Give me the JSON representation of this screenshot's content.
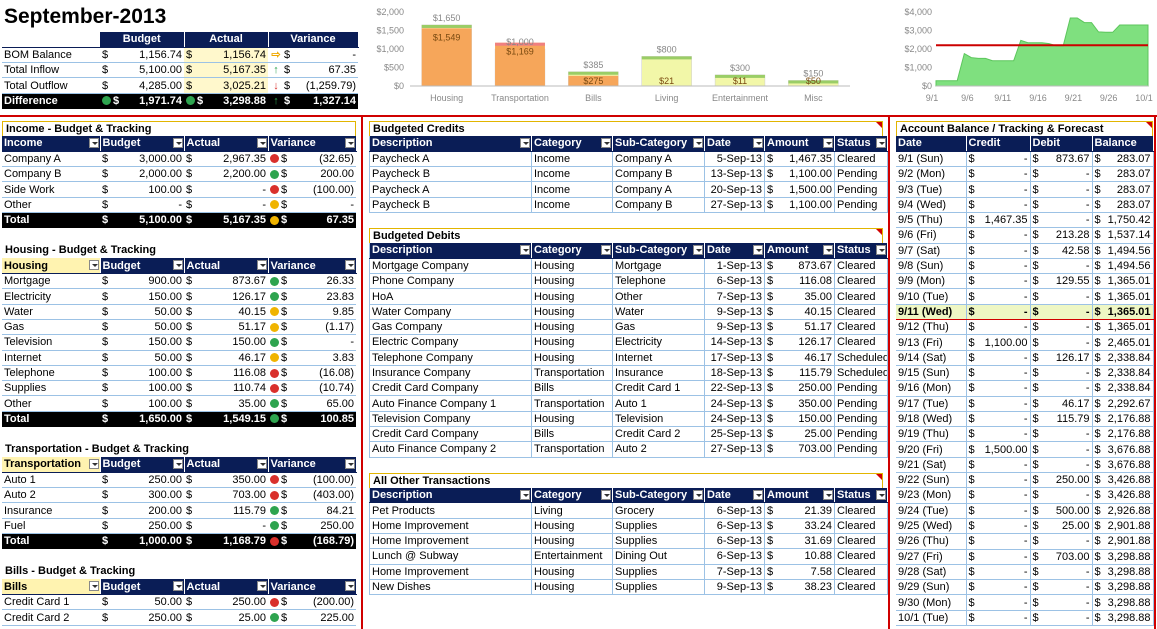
{
  "title": "September-2013",
  "summary": {
    "headers": [
      "",
      "Budget",
      "Actual",
      "Variance"
    ],
    "rows": [
      {
        "label": "BOM Balance",
        "budget": "1,156.74",
        "actual": "1,156.74",
        "variance": "-",
        "icon": "rt"
      },
      {
        "label": "Total Inflow",
        "budget": "5,100.00",
        "actual": "5,167.35",
        "variance": "67.35",
        "icon": "up"
      },
      {
        "label": "Total Outflow",
        "budget": "4,285.00",
        "actual": "3,025.21",
        "variance": "(1,259.79)",
        "icon": "dn"
      }
    ],
    "difference": {
      "label": "Difference",
      "budget": "1,971.74",
      "actual": "3,298.88",
      "variance": "1,327.14"
    }
  },
  "bar_chart": {
    "type": "bar",
    "categories": [
      "Housing",
      "Transportation",
      "Bills",
      "Living",
      "Entertainment",
      "Misc"
    ],
    "series": [
      {
        "values": [
          1650,
          1000,
          385,
          800,
          300,
          150
        ]
      },
      {
        "values": [
          1549,
          1169,
          275,
          21,
          11,
          50
        ]
      }
    ],
    "budget_labels": [
      "$1,650",
      "$1,000",
      "$385",
      "$800",
      "$300",
      "$150"
    ],
    "actual_labels": [
      "$1,549",
      "$1,169",
      "$275",
      "$21",
      "$11",
      "$50"
    ],
    "yticks": [
      "$0",
      "$500",
      "$1,000",
      "$1,500",
      "$2,000"
    ],
    "ylim": [
      0,
      2000
    ]
  },
  "line_chart": {
    "type": "area",
    "xticks": [
      "9/1",
      "9/6",
      "9/11",
      "9/16",
      "9/21",
      "9/26",
      "10/1"
    ],
    "yticks": [
      "$0",
      "$1,000",
      "$2,000",
      "$3,000",
      "$4,000"
    ],
    "ylim": [
      0,
      4000
    ],
    "reference": 2200,
    "x": [
      1,
      2,
      3,
      4,
      5,
      6,
      7,
      8,
      9,
      10,
      11,
      12,
      13,
      14,
      15,
      16,
      17,
      18,
      19,
      20,
      21,
      22,
      23,
      24,
      25,
      26,
      27,
      28,
      29,
      30,
      31
    ],
    "values": [
      283.07,
      283.07,
      283.07,
      283.07,
      1750.42,
      1537.14,
      1494.56,
      1494.56,
      1365.01,
      1365.01,
      1365.01,
      1365.01,
      2465.01,
      2338.84,
      2338.84,
      2338.84,
      2292.67,
      2176.88,
      2176.88,
      3676.88,
      3676.88,
      3426.88,
      3426.88,
      2926.88,
      2901.88,
      2901.88,
      3298.88,
      3298.88,
      3298.88,
      3298.88,
      3298.88
    ]
  },
  "income": {
    "title": "Income - Budget & Tracking",
    "headers": [
      "Income",
      "Budget",
      "Actual",
      "Variance"
    ],
    "rows": [
      [
        "Company A",
        "3,000.00",
        "2,967.35",
        "(32.65)",
        "r"
      ],
      [
        "Company B",
        "2,000.00",
        "2,200.00",
        "200.00",
        "g"
      ],
      [
        "Side Work",
        "100.00",
        "-",
        "(100.00)",
        "r"
      ],
      [
        "Other",
        "-",
        "-",
        "-",
        "y"
      ]
    ],
    "total": [
      "Total",
      "5,100.00",
      "5,167.35",
      "67.35",
      "y"
    ]
  },
  "housing": {
    "title": "Housing - Budget & Tracking",
    "headers": [
      "Housing",
      "Budget",
      "Actual",
      "Variance"
    ],
    "rows": [
      [
        "Mortgage",
        "900.00",
        "873.67",
        "26.33",
        "g"
      ],
      [
        "Electricity",
        "150.00",
        "126.17",
        "23.83",
        "g"
      ],
      [
        "Water",
        "50.00",
        "40.15",
        "9.85",
        "y"
      ],
      [
        "Gas",
        "50.00",
        "51.17",
        "(1.17)",
        "y"
      ],
      [
        "Television",
        "150.00",
        "150.00",
        "-",
        "g"
      ],
      [
        "Internet",
        "50.00",
        "46.17",
        "3.83",
        "y"
      ],
      [
        "Telephone",
        "100.00",
        "116.08",
        "(16.08)",
        "r"
      ],
      [
        "Supplies",
        "100.00",
        "110.74",
        "(10.74)",
        "r"
      ],
      [
        "Other",
        "100.00",
        "35.00",
        "65.00",
        "g"
      ]
    ],
    "total": [
      "Total",
      "1,650.00",
      "1,549.15",
      "100.85",
      "g"
    ]
  },
  "transportation": {
    "title": "Transportation - Budget & Tracking",
    "headers": [
      "Transportation",
      "Budget",
      "Actual",
      "Variance"
    ],
    "rows": [
      [
        "Auto 1",
        "250.00",
        "350.00",
        "(100.00)",
        "r"
      ],
      [
        "Auto 2",
        "300.00",
        "703.00",
        "(403.00)",
        "r"
      ],
      [
        "Insurance",
        "200.00",
        "115.79",
        "84.21",
        "g"
      ],
      [
        "Fuel",
        "250.00",
        "-",
        "250.00",
        "g"
      ]
    ],
    "total": [
      "Total",
      "1,000.00",
      "1,168.79",
      "(168.79)",
      "r"
    ]
  },
  "bills": {
    "title": "Bills - Budget & Tracking",
    "headers": [
      "Bills",
      "Budget",
      "Actual",
      "Variance"
    ],
    "rows": [
      [
        "Credit Card 1",
        "50.00",
        "250.00",
        "(200.00)",
        "r"
      ],
      [
        "Credit Card 2",
        "250.00",
        "25.00",
        "225.00",
        "g"
      ]
    ]
  },
  "credits": {
    "title": "Budgeted Credits",
    "headers": [
      "Description",
      "Category",
      "Sub-Category",
      "Date",
      "Amount",
      "Status"
    ],
    "rows": [
      [
        "Paycheck A",
        "Income",
        "Company A",
        "5-Sep-13",
        "1,467.35",
        "Cleared"
      ],
      [
        "Paycheck B",
        "Income",
        "Company B",
        "13-Sep-13",
        "1,100.00",
        "Pending"
      ],
      [
        "Paycheck A",
        "Income",
        "Company A",
        "20-Sep-13",
        "1,500.00",
        "Pending"
      ],
      [
        "Paycheck B",
        "Income",
        "Company B",
        "27-Sep-13",
        "1,100.00",
        "Pending"
      ]
    ]
  },
  "debits": {
    "title": "Budgeted Debits",
    "headers": [
      "Description",
      "Category",
      "Sub-Category",
      "Date",
      "Amount",
      "Status"
    ],
    "rows": [
      [
        "Mortgage Company",
        "Housing",
        "Mortgage",
        "1-Sep-13",
        "873.67",
        "Cleared"
      ],
      [
        "Phone Company",
        "Housing",
        "Telephone",
        "6-Sep-13",
        "116.08",
        "Cleared"
      ],
      [
        "HoA",
        "Housing",
        "Other",
        "7-Sep-13",
        "35.00",
        "Cleared"
      ],
      [
        "Water Company",
        "Housing",
        "Water",
        "9-Sep-13",
        "40.15",
        "Cleared"
      ],
      [
        "Gas Company",
        "Housing",
        "Gas",
        "9-Sep-13",
        "51.17",
        "Cleared"
      ],
      [
        "Electric Company",
        "Housing",
        "Electricity",
        "14-Sep-13",
        "126.17",
        "Cleared"
      ],
      [
        "Telephone Company",
        "Housing",
        "Internet",
        "17-Sep-13",
        "46.17",
        "Scheduled"
      ],
      [
        "Insurance Company",
        "Transportation",
        "Insurance",
        "18-Sep-13",
        "115.79",
        "Scheduled"
      ],
      [
        "Credit Card Company",
        "Bills",
        "Credit Card 1",
        "22-Sep-13",
        "250.00",
        "Pending"
      ],
      [
        "Auto Finance Company 1",
        "Transportation",
        "Auto 1",
        "24-Sep-13",
        "350.00",
        "Pending"
      ],
      [
        "Television Company",
        "Housing",
        "Television",
        "24-Sep-13",
        "150.00",
        "Pending"
      ],
      [
        "Credit Card Company",
        "Bills",
        "Credit Card 2",
        "25-Sep-13",
        "25.00",
        "Pending"
      ],
      [
        "Auto Finance Company 2",
        "Transportation",
        "Auto 2",
        "27-Sep-13",
        "703.00",
        "Pending"
      ]
    ]
  },
  "other": {
    "title": "All Other Transactions",
    "headers": [
      "Description",
      "Category",
      "Sub-Category",
      "Date",
      "Amount",
      "Status"
    ],
    "rows": [
      [
        "Pet Products",
        "Living",
        "Grocery",
        "6-Sep-13",
        "21.39",
        "Cleared"
      ],
      [
        "Home Improvement",
        "Housing",
        "Supplies",
        "6-Sep-13",
        "33.24",
        "Cleared"
      ],
      [
        "Home Improvement",
        "Housing",
        "Supplies",
        "6-Sep-13",
        "31.69",
        "Cleared"
      ],
      [
        "Lunch @ Subway",
        "Entertainment",
        "Dining Out",
        "6-Sep-13",
        "10.88",
        "Cleared"
      ],
      [
        "Home Improvement",
        "Housing",
        "Supplies",
        "7-Sep-13",
        "7.58",
        "Cleared"
      ],
      [
        "New Dishes",
        "Housing",
        "Supplies",
        "9-Sep-13",
        "38.23",
        "Cleared"
      ]
    ]
  },
  "account": {
    "title": "Account Balance / Tracking & Forecast",
    "headers": [
      "Date",
      "Credit",
      "Debit",
      "Balance"
    ],
    "highlight_row": 10,
    "rows": [
      [
        "9/1 (Sun)",
        "-",
        "873.67",
        "283.07"
      ],
      [
        "9/2 (Mon)",
        "-",
        "-",
        "283.07"
      ],
      [
        "9/3 (Tue)",
        "-",
        "-",
        "283.07"
      ],
      [
        "9/4 (Wed)",
        "-",
        "-",
        "283.07"
      ],
      [
        "9/5 (Thu)",
        "1,467.35",
        "-",
        "1,750.42"
      ],
      [
        "9/6 (Fri)",
        "-",
        "213.28",
        "1,537.14"
      ],
      [
        "9/7 (Sat)",
        "-",
        "42.58",
        "1,494.56"
      ],
      [
        "9/8 (Sun)",
        "-",
        "-",
        "1,494.56"
      ],
      [
        "9/9 (Mon)",
        "-",
        "129.55",
        "1,365.01"
      ],
      [
        "9/10 (Tue)",
        "-",
        "-",
        "1,365.01"
      ],
      [
        "9/11 (Wed)",
        "-",
        "-",
        "1,365.01"
      ],
      [
        "9/12 (Thu)",
        "-",
        "-",
        "1,365.01"
      ],
      [
        "9/13 (Fri)",
        "1,100.00",
        "-",
        "2,465.01"
      ],
      [
        "9/14 (Sat)",
        "-",
        "126.17",
        "2,338.84"
      ],
      [
        "9/15 (Sun)",
        "-",
        "-",
        "2,338.84"
      ],
      [
        "9/16 (Mon)",
        "-",
        "-",
        "2,338.84"
      ],
      [
        "9/17 (Tue)",
        "-",
        "46.17",
        "2,292.67"
      ],
      [
        "9/18 (Wed)",
        "-",
        "115.79",
        "2,176.88"
      ],
      [
        "9/19 (Thu)",
        "-",
        "-",
        "2,176.88"
      ],
      [
        "9/20 (Fri)",
        "1,500.00",
        "-",
        "3,676.88"
      ],
      [
        "9/21 (Sat)",
        "-",
        "-",
        "3,676.88"
      ],
      [
        "9/22 (Sun)",
        "-",
        "250.00",
        "3,426.88"
      ],
      [
        "9/23 (Mon)",
        "-",
        "-",
        "3,426.88"
      ],
      [
        "9/24 (Tue)",
        "-",
        "500.00",
        "2,926.88"
      ],
      [
        "9/25 (Wed)",
        "-",
        "25.00",
        "2,901.88"
      ],
      [
        "9/26 (Thu)",
        "-",
        "-",
        "2,901.88"
      ],
      [
        "9/27 (Fri)",
        "-",
        "703.00",
        "3,298.88"
      ],
      [
        "9/28 (Sat)",
        "-",
        "-",
        "3,298.88"
      ],
      [
        "9/29 (Sun)",
        "-",
        "-",
        "3,298.88"
      ],
      [
        "9/30 (Mon)",
        "-",
        "-",
        "3,298.88"
      ],
      [
        "10/1 (Tue)",
        "-",
        "-",
        "3,298.88"
      ]
    ]
  },
  "colors": {
    "header": "#0a1d56",
    "accent_red": "#d00000",
    "bar_budget_housing": "#f8b860",
    "bar_budget_green": "#f2f7a8",
    "bar_actual": "#f6a65a",
    "line_fill": "#7fe07f"
  },
  "currency_symbol": "$"
}
